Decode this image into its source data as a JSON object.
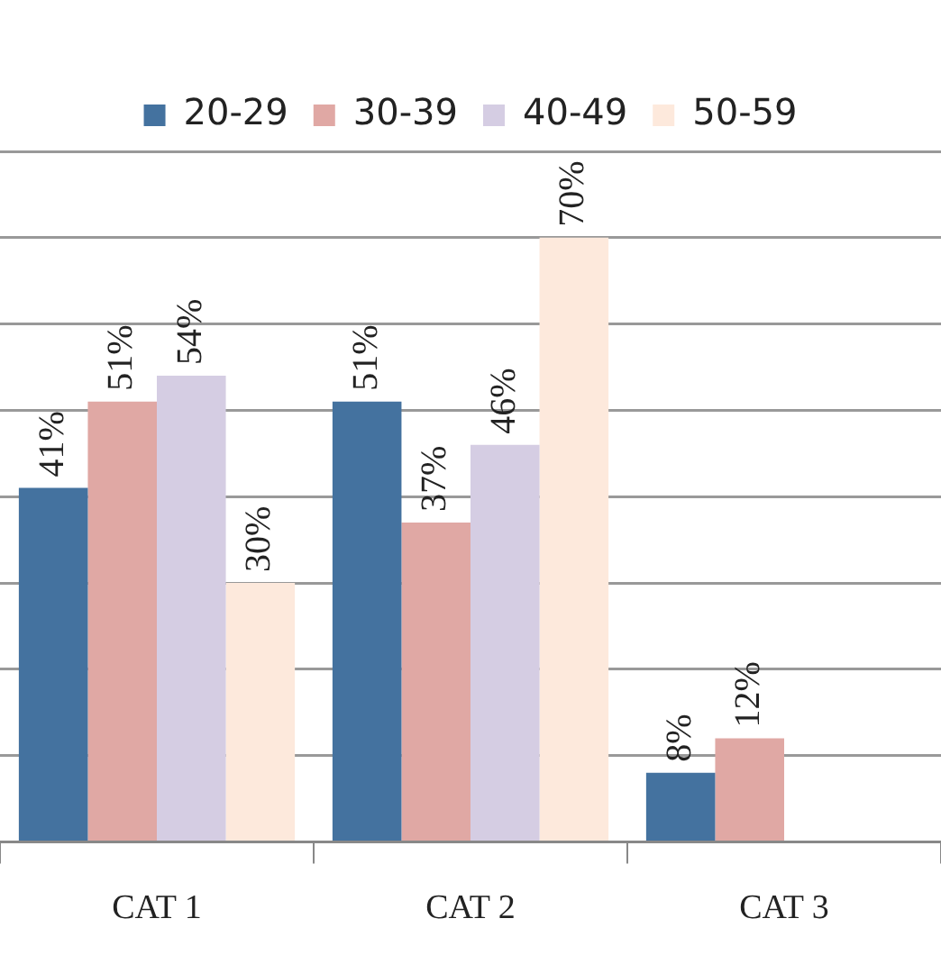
{
  "chart_data": {
    "type": "bar",
    "categories": [
      "CAT 1",
      "CAT 2",
      "CAT 3"
    ],
    "series": [
      {
        "name": "20-29",
        "color": "#44729f",
        "values": [
          41,
          51,
          8
        ],
        "value_labels": [
          "41%",
          "51%",
          "8%"
        ]
      },
      {
        "name": "30-39",
        "color": "#e0a8a4",
        "values": [
          51,
          37,
          12
        ],
        "value_labels": [
          "51%",
          "37%",
          "12%"
        ]
      },
      {
        "name": "40-49",
        "color": "#d5cde3",
        "values": [
          54,
          46,
          null
        ],
        "value_labels": [
          "54%",
          "46%",
          null
        ]
      },
      {
        "name": "50-59",
        "color": "#fde9dc",
        "values": [
          30,
          70,
          null
        ],
        "value_labels": [
          "30%",
          "70%",
          null
        ]
      }
    ],
    "ylim": [
      0,
      80
    ],
    "yticks": [
      {
        "value": 0,
        "label": null
      },
      {
        "value": 10,
        "label": null
      },
      {
        "value": 20,
        "label": null
      },
      {
        "value": 30,
        "label": null
      },
      {
        "value": 40,
        "label": null
      },
      {
        "value": 50,
        "label": null
      },
      {
        "value": 60,
        "label": null
      },
      {
        "value": 70,
        "label": null
      },
      {
        "value": 80,
        "label": null
      }
    ],
    "grid": "y",
    "legend": "top",
    "tick_labels": "x"
  }
}
